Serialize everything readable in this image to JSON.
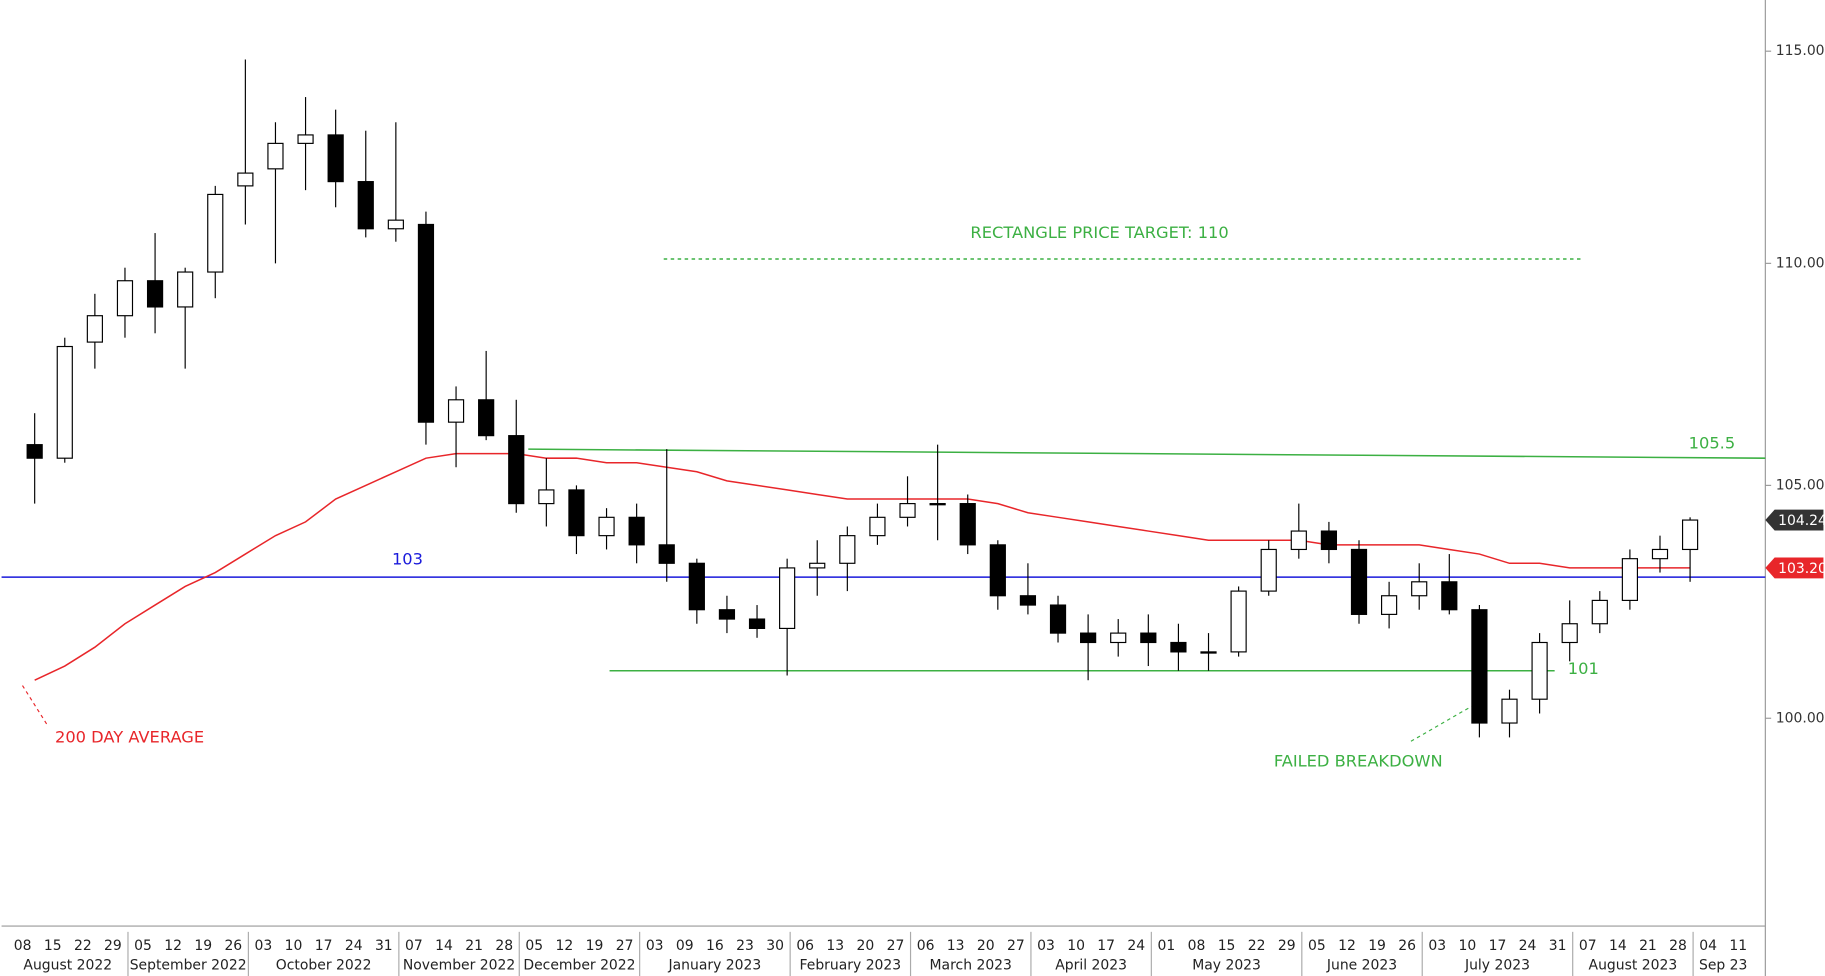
{
  "chart_data": {
    "type": "candlestick",
    "log_y": true,
    "ylim": [
      95.74,
      116.24
    ],
    "yticks": [
      {
        "value": 100,
        "label": "100.00"
      },
      {
        "value": 105,
        "label": "105.00"
      },
      {
        "value": 110,
        "label": "110.00"
      },
      {
        "value": 115,
        "label": "115.00"
      }
    ],
    "xlim": [
      -0.7,
      57.9
    ],
    "months": [
      {
        "label": "August 2022",
        "days": [
          "08",
          "15",
          "22",
          "29"
        ]
      },
      {
        "label": "September 2022",
        "days": [
          "05",
          "12",
          "19",
          "26"
        ]
      },
      {
        "label": "October 2022",
        "days": [
          "03",
          "10",
          "17",
          "24",
          "31"
        ]
      },
      {
        "label": "November 2022",
        "days": [
          "07",
          "14",
          "21",
          "28"
        ]
      },
      {
        "label": "December 2022",
        "days": [
          "05",
          "12",
          "19",
          "27"
        ]
      },
      {
        "label": "January 2023",
        "days": [
          "03",
          "09",
          "16",
          "23",
          "30"
        ]
      },
      {
        "label": "February 2023",
        "days": [
          "06",
          "13",
          "20",
          "27"
        ]
      },
      {
        "label": "March 2023",
        "days": [
          "06",
          "13",
          "20",
          "27"
        ]
      },
      {
        "label": "April 2023",
        "days": [
          "03",
          "10",
          "17",
          "24"
        ]
      },
      {
        "label": "May 2023",
        "days": [
          "01",
          "08",
          "15",
          "22",
          "29"
        ]
      },
      {
        "label": "June 2023",
        "days": [
          "05",
          "12",
          "19",
          "26"
        ]
      },
      {
        "label": "July 2023",
        "days": [
          "03",
          "10",
          "17",
          "24",
          "31"
        ]
      },
      {
        "label": "August 2023",
        "days": [
          "07",
          "14",
          "21",
          "28"
        ]
      },
      {
        "label": "Sep 23",
        "days": [
          "04",
          "11"
        ]
      }
    ],
    "up_color": "#ffffff",
    "down_color": "#000000",
    "open": [
      105.9,
      105.6,
      108.2,
      108.8,
      109.6,
      109.0,
      109.8,
      111.8,
      112.2,
      112.8,
      113.0,
      111.9,
      110.8,
      110.9,
      106.4,
      106.9,
      106.1,
      104.6,
      104.9,
      103.9,
      104.3,
      103.7,
      103.3,
      102.3,
      102.1,
      101.9,
      103.2,
      103.3,
      103.9,
      104.3,
      104.6,
      104.6,
      103.7,
      102.6,
      102.4,
      101.8,
      101.6,
      101.8,
      101.6,
      101.4,
      101.4,
      102.7,
      103.6,
      104.0,
      103.6,
      102.2,
      102.6,
      102.9,
      102.3,
      99.9,
      100.4,
      101.6,
      102.0,
      102.5,
      103.4,
      103.6
    ],
    "high": [
      106.6,
      108.3,
      109.3,
      109.9,
      110.7,
      109.9,
      111.8,
      114.8,
      113.3,
      113.9,
      113.6,
      113.1,
      113.3,
      111.2,
      107.2,
      108.0,
      106.9,
      105.6,
      105.0,
      104.5,
      104.6,
      105.8,
      103.4,
      102.6,
      102.4,
      103.4,
      103.8,
      104.1,
      104.6,
      105.2,
      105.9,
      104.8,
      103.8,
      103.3,
      102.6,
      102.2,
      102.1,
      102.2,
      102.0,
      101.8,
      102.8,
      103.8,
      104.6,
      104.2,
      103.8,
      102.9,
      103.3,
      103.5,
      102.4,
      100.6,
      101.8,
      102.5,
      102.7,
      103.6,
      103.9,
      104.3
    ],
    "low": [
      104.6,
      105.5,
      107.6,
      108.3,
      108.4,
      107.6,
      109.2,
      110.9,
      110.0,
      111.7,
      111.3,
      110.6,
      110.5,
      105.9,
      105.4,
      106.0,
      104.4,
      104.1,
      103.5,
      103.6,
      103.3,
      102.9,
      102.0,
      101.8,
      101.7,
      100.9,
      102.6,
      102.7,
      103.7,
      104.1,
      103.8,
      103.5,
      102.3,
      102.2,
      101.6,
      100.8,
      101.3,
      101.1,
      101.0,
      101.0,
      101.3,
      102.6,
      103.4,
      103.3,
      102.0,
      101.9,
      102.3,
      102.2,
      99.6,
      99.6,
      100.1,
      101.2,
      101.8,
      102.3,
      103.1,
      102.9
    ],
    "close": [
      105.6,
      108.1,
      108.8,
      109.6,
      109.0,
      109.8,
      111.6,
      112.1,
      112.8,
      113.0,
      111.9,
      110.8,
      111.0,
      106.4,
      106.9,
      106.1,
      104.6,
      104.9,
      103.9,
      104.3,
      103.7,
      103.3,
      102.3,
      102.1,
      101.9,
      103.2,
      103.3,
      103.9,
      104.3,
      104.6,
      104.6,
      103.7,
      102.6,
      102.4,
      101.8,
      101.6,
      101.8,
      101.6,
      101.4,
      101.4,
      102.7,
      103.6,
      104.0,
      103.6,
      102.2,
      102.6,
      102.9,
      102.3,
      99.9,
      100.4,
      101.6,
      102.0,
      102.5,
      103.4,
      103.6,
      104.24
    ],
    "last_tag_color": "#333333",
    "series": [
      {
        "name": "200 DAY AVERAGE",
        "color": "#e8262a",
        "values": [
          100.8,
          101.1,
          101.5,
          102.0,
          102.4,
          102.8,
          103.1,
          103.5,
          103.9,
          104.2,
          104.7,
          105.0,
          105.3,
          105.6,
          105.7,
          105.7,
          105.7,
          105.6,
          105.6,
          105.5,
          105.5,
          105.4,
          105.3,
          105.1,
          105.0,
          104.9,
          104.8,
          104.7,
          104.7,
          104.7,
          104.7,
          104.7,
          104.6,
          104.4,
          104.3,
          104.2,
          104.1,
          104.0,
          103.9,
          103.8,
          103.8,
          103.8,
          103.8,
          103.7,
          103.7,
          103.7,
          103.7,
          103.6,
          103.5,
          103.3,
          103.3,
          103.2,
          103.2,
          103.2,
          103.2,
          103.2
        ]
      }
    ],
    "levels": [
      {
        "name": "105.5",
        "color": "#3cb043",
        "dashed": false,
        "x": [
          16.8,
          57.9
        ],
        "y": [
          105.8,
          105.6
        ]
      },
      {
        "name": "101",
        "color": "#3cb043",
        "dashed": false,
        "x": [
          19.5,
          50.9
        ],
        "y": [
          101.0,
          101.0
        ]
      },
      {
        "name": "103",
        "color": "#1a1adb",
        "dashed": false,
        "x": [
          -0.7,
          57.9
        ],
        "y": [
          103.0,
          103.0
        ]
      },
      {
        "name": "RECTANGLE PRICE TARGET: 110",
        "color": "#3cb043",
        "dashed": true,
        "x": [
          21.3,
          51.8
        ],
        "y": [
          110.1,
          110.1
        ]
      }
    ],
    "annotations": [
      {
        "text": "FAILED BREAKDOWN",
        "color": "#3cb043"
      }
    ],
    "price_tags": [
      {
        "value": 103.2,
        "label": "103.20",
        "color": "#e8262a"
      }
    ]
  }
}
